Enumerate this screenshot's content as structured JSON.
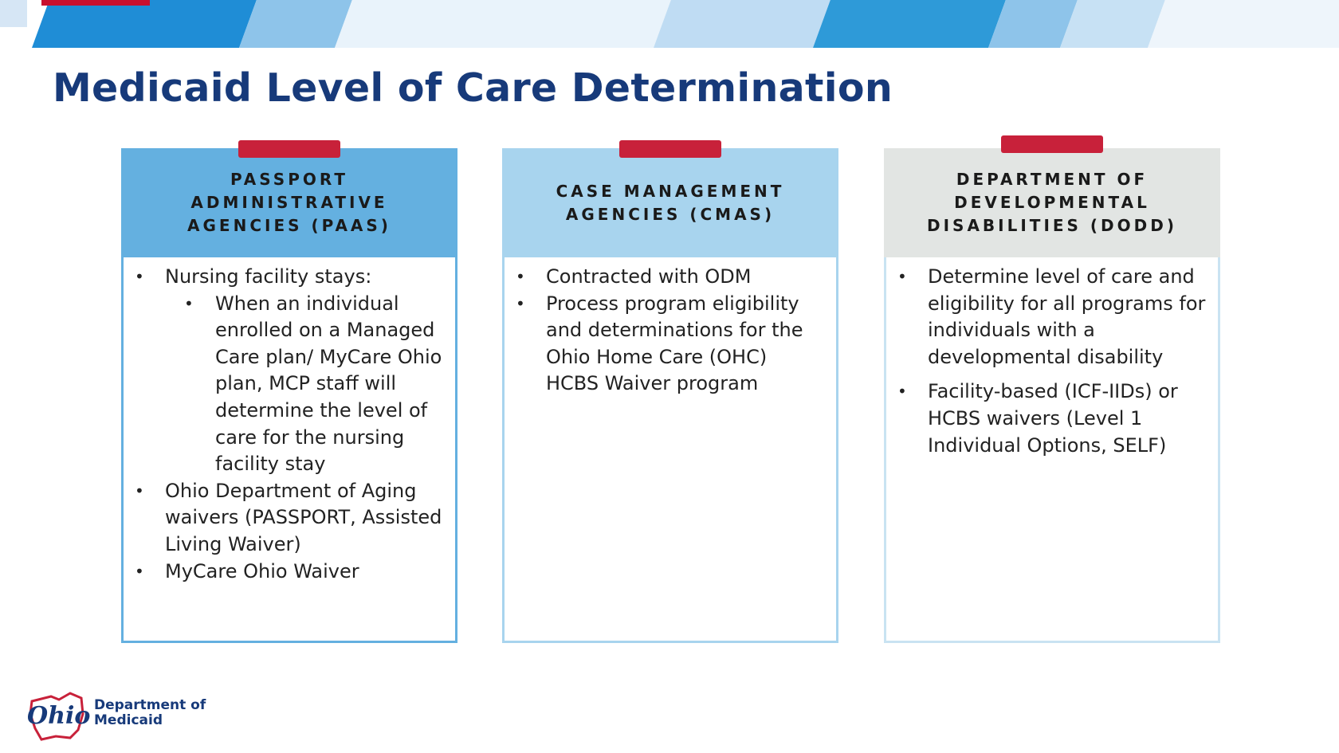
{
  "slide": {
    "title": "Medicaid Level of Care Determination"
  },
  "cards": [
    {
      "header": "PASSPORT ADMINISTRATIVE AGENCIES (PAAS)",
      "items": [
        "Nursing facility stays:",
        "When an individual enrolled on a Managed Care plan/ MyCare Ohio plan, MCP staff will determine the level of care for the nursing facility stay",
        "Ohio Department of Aging waivers (PASSPORT, Assisted Living Waiver)",
        "MyCare Ohio Waiver"
      ]
    },
    {
      "header": "CASE MANAGEMENT AGENCIES (CMAS)",
      "items": [
        "Contracted with ODM",
        "Process program eligibility and determinations for the Ohio Home Care (OHC) HCBS Waiver program"
      ]
    },
    {
      "header": "DEPARTMENT OF DEVELOPMENTAL DISABILITIES (DODD)",
      "items": [
        "Determine level of care and eligibility for all programs for individuals with a developmental disability",
        "Facility-based (ICF-IIDs) or HCBS waivers (Level 1 Individual Options, SELF)"
      ]
    }
  ],
  "footer": {
    "logo_script": "Ohio",
    "dept_line1": "Department of",
    "dept_line2": "Medicaid"
  },
  "colors": {
    "title": "#173a7a",
    "accent_red": "#c8213a",
    "card1_header": "#64b0e0",
    "card2_header": "#a8d4ee",
    "card3_header": "#e2e5e3"
  }
}
